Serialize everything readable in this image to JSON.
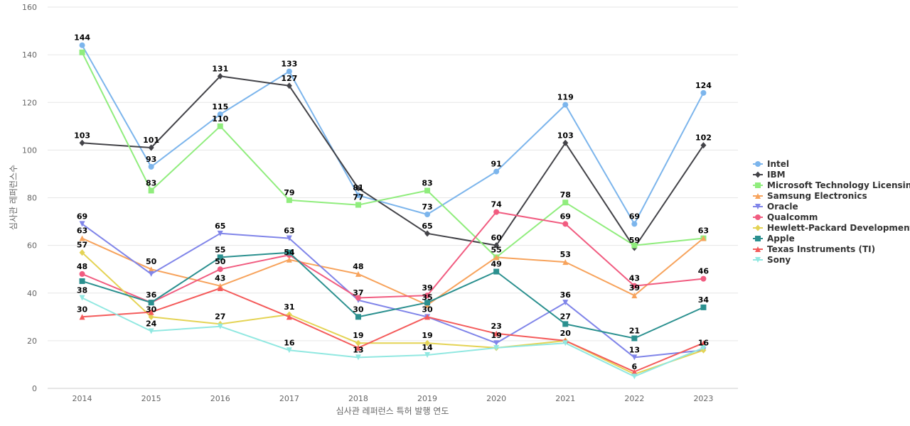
{
  "chart_data": {
    "type": "line",
    "title": "",
    "xlabel": "심사관 레퍼런스 특허 발행 연도",
    "ylabel": "심사관 레퍼런스수",
    "ylim": [
      0,
      160
    ],
    "yticks": [
      0,
      20,
      40,
      60,
      80,
      100,
      120,
      140,
      160
    ],
    "categories": [
      "2014",
      "2015",
      "2016",
      "2017",
      "2018",
      "2019",
      "2020",
      "2021",
      "2022",
      "2023"
    ],
    "grid": true,
    "legend_position": "right",
    "series": [
      {
        "name": "Intel",
        "color": "#7cb5ec",
        "marker": "circle",
        "values": [
          144,
          93,
          115,
          133,
          81,
          73,
          91,
          119,
          69,
          124
        ]
      },
      {
        "name": "IBM",
        "color": "#434348",
        "marker": "diamond",
        "values": [
          103,
          101,
          131,
          127,
          84,
          65,
          60,
          103,
          59,
          102
        ]
      },
      {
        "name": "Microsoft Technology Licensing",
        "color": "#90ed7d",
        "marker": "square",
        "values": [
          141,
          83,
          110,
          79,
          77,
          83,
          55,
          78,
          60,
          63
        ]
      },
      {
        "name": "Samsung Electronics",
        "color": "#f7a35c",
        "marker": "triangle",
        "values": [
          63,
          50,
          43,
          54,
          48,
          35,
          55,
          53,
          39,
          63
        ]
      },
      {
        "name": "Oracle",
        "color": "#8085e9",
        "marker": "triangle-down",
        "values": [
          69,
          48,
          65,
          63,
          37,
          30,
          19,
          36,
          13,
          16
        ]
      },
      {
        "name": "Qualcomm",
        "color": "#f15c80",
        "marker": "circle",
        "values": [
          48,
          36,
          50,
          56,
          38,
          39,
          74,
          69,
          43,
          46
        ]
      },
      {
        "name": "Hewlett-Packard Development",
        "color": "#e4d354",
        "marker": "diamond",
        "values": [
          57,
          30,
          27,
          31,
          19,
          19,
          17,
          20,
          6,
          16
        ]
      },
      {
        "name": "Apple",
        "color": "#2b908f",
        "marker": "square",
        "values": [
          45,
          36,
          55,
          57,
          30,
          36,
          49,
          27,
          21,
          34
        ]
      },
      {
        "name": "Texas Instruments (TI)",
        "color": "#f45b5b",
        "marker": "triangle",
        "values": [
          30,
          32,
          42,
          30,
          17,
          30,
          23,
          20,
          7,
          19
        ]
      },
      {
        "name": "Sony",
        "color": "#91e8e1",
        "marker": "triangle-down",
        "values": [
          38,
          24,
          26,
          16,
          13,
          14,
          17,
          19,
          5,
          17
        ]
      }
    ],
    "data_labels": [
      {
        "year": "2014",
        "texts": [
          "144",
          "103",
          "69",
          "63",
          "57",
          "48",
          "38",
          "30"
        ],
        "values": [
          144,
          103,
          69,
          63,
          57,
          48,
          38,
          30
        ]
      },
      {
        "year": "2015",
        "texts": [
          "101",
          "93",
          "83",
          "50",
          "36",
          "30",
          "24"
        ],
        "values": [
          101,
          93,
          83,
          50,
          36,
          30,
          24
        ]
      },
      {
        "year": "2016",
        "texts": [
          "131",
          "115",
          "110",
          "65",
          "55",
          "50",
          "43",
          "27"
        ],
        "values": [
          131,
          115,
          110,
          65,
          55,
          50,
          43,
          27
        ]
      },
      {
        "year": "2017",
        "texts": [
          "133",
          "127",
          "79",
          "63",
          "54",
          "31",
          "16"
        ],
        "values": [
          133,
          127,
          79,
          63,
          54,
          31,
          16
        ]
      },
      {
        "year": "2018",
        "texts": [
          "81",
          "77",
          "48",
          "37",
          "30",
          "19",
          "13"
        ],
        "values": [
          81,
          77,
          48,
          37,
          30,
          19,
          13
        ]
      },
      {
        "year": "2019",
        "texts": [
          "83",
          "73",
          "65",
          "39",
          "35",
          "30",
          "19",
          "14"
        ],
        "values": [
          83,
          73,
          65,
          39,
          35,
          30,
          19,
          14
        ]
      },
      {
        "year": "2020",
        "texts": [
          "91",
          "74",
          "60",
          "55",
          "49",
          "23",
          "19"
        ],
        "values": [
          91,
          74,
          60,
          55,
          49,
          23,
          19
        ]
      },
      {
        "year": "2021",
        "texts": [
          "119",
          "103",
          "78",
          "69",
          "53",
          "36",
          "27",
          "20"
        ],
        "values": [
          119,
          103,
          78,
          69,
          53,
          36,
          27,
          20
        ]
      },
      {
        "year": "2022",
        "texts": [
          "69",
          "59",
          "43",
          "39",
          "21",
          "13",
          "6"
        ],
        "values": [
          69,
          59,
          43,
          39,
          21,
          13,
          6
        ]
      },
      {
        "year": "2023",
        "texts": [
          "124",
          "102",
          "63",
          "46",
          "34",
          "16"
        ],
        "values": [
          124,
          102,
          63,
          46,
          34,
          16
        ]
      }
    ]
  }
}
